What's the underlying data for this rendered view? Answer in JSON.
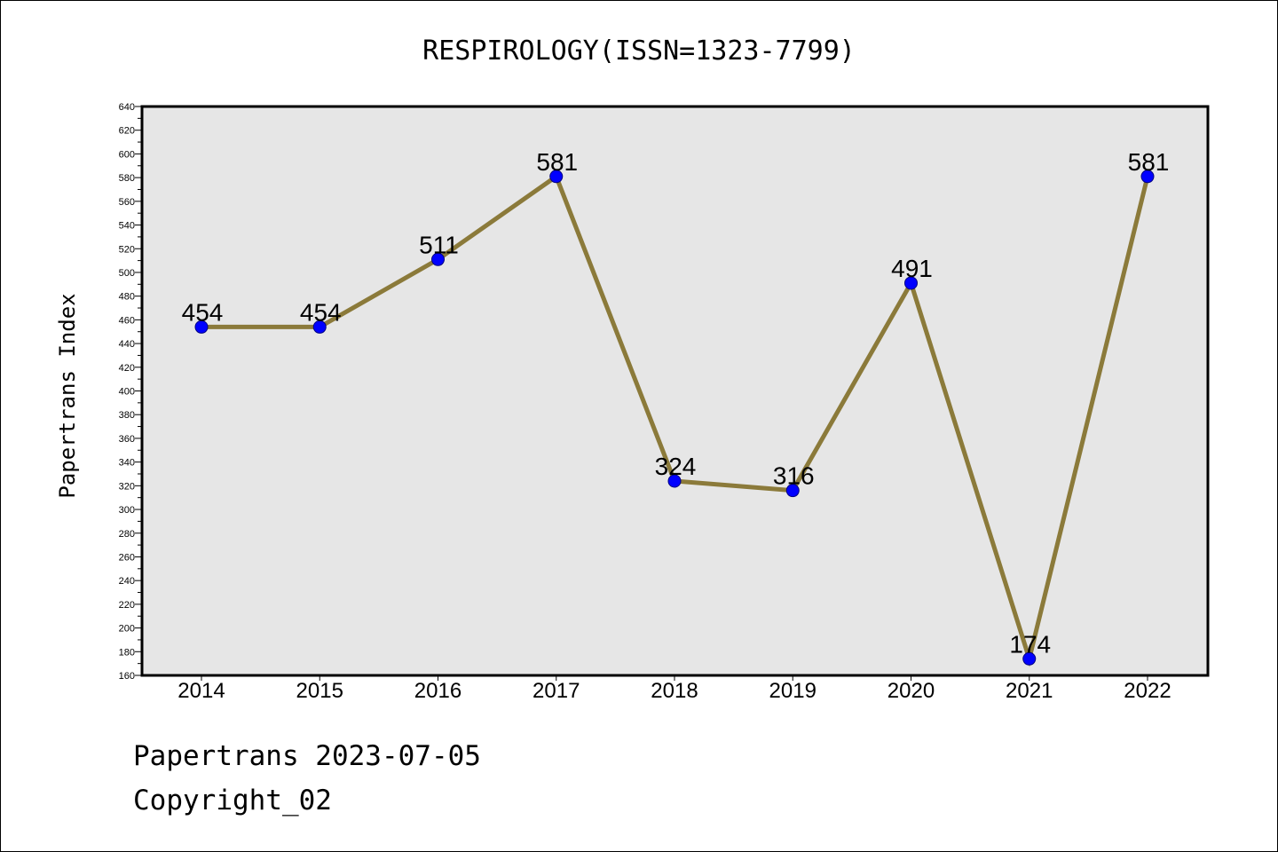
{
  "chart_data": {
    "type": "line",
    "title": "RESPIROLOGY(ISSN=1323-7799)",
    "xlabel": "",
    "ylabel": "Papertrans Index",
    "categories": [
      "2014",
      "2015",
      "2016",
      "2017",
      "2018",
      "2019",
      "2020",
      "2021",
      "2022"
    ],
    "series": [
      {
        "values": [
          454,
          454,
          511,
          581,
          324,
          316,
          491,
          174,
          581
        ]
      }
    ],
    "data_labels": [
      "454",
      "454",
      "511",
      "581",
      "324",
      "316",
      "491",
      "174",
      "581"
    ],
    "ylim": [
      160,
      640
    ],
    "y_major_step": 20,
    "y_minor_step": 10,
    "grid": false,
    "legend": "none",
    "colors": {
      "plot_background": "#e6e6e6",
      "line": "#8b7a3a",
      "marker_fill": "#0000ff",
      "marker_edge": "#000080"
    }
  },
  "footer": {
    "line1": "Papertrans 2023-07-05",
    "line2": "Copyright_02"
  }
}
